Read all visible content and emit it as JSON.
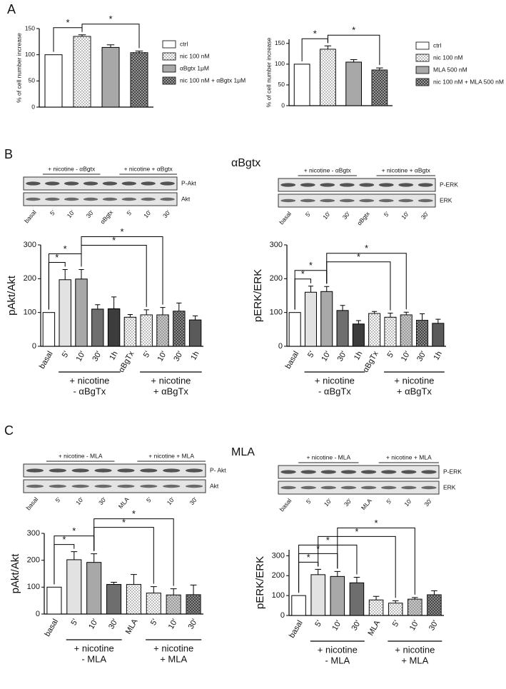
{
  "panel_labels": [
    "A",
    "B",
    "C"
  ],
  "section_titles": [
    "αBgtx",
    "MLA"
  ],
  "blots": [
    {
      "groups": [
        {
          "label": "+ nicotine - αBgtx",
          "from": 1,
          "to": 3
        },
        {
          "label": "+ nicotine + αBgtx",
          "from": 5,
          "to": 7
        }
      ],
      "rows": [
        "P-Akt",
        "Akt"
      ],
      "lanes": [
        "basal",
        "5'",
        "10'",
        "30'",
        "αBgtx",
        "5'",
        "10'",
        "30'"
      ]
    },
    {
      "groups": [
        {
          "label": "+ nicotine - αBgtx",
          "from": 1,
          "to": 3
        },
        {
          "label": "+ nicotine + αBgtx",
          "from": 5,
          "to": 7
        }
      ],
      "rows": [
        "P-ERK",
        "ERK"
      ],
      "lanes": [
        "basal",
        "5'",
        "10'",
        "30'",
        "αBgtx",
        "5'",
        "10'",
        "30'"
      ]
    },
    {
      "groups": [
        {
          "label": "+ nicotine - MLA",
          "from": 1,
          "to": 3
        },
        {
          "label": "+ nicotine + MLA",
          "from": 5,
          "to": 7
        }
      ],
      "rows": [
        "P- Akt",
        "Akt"
      ],
      "lanes": [
        "basal",
        "5'",
        "10'",
        "30'",
        "MLA",
        "5'",
        "10'",
        "30'"
      ]
    },
    {
      "groups": [
        {
          "label": "+ nicotine - MLA",
          "from": 1,
          "to": 3
        },
        {
          "label": "+ nicotine + MLA",
          "from": 5,
          "to": 7
        }
      ],
      "rows": [
        "P-ERK",
        "ERK"
      ],
      "lanes": [
        "basal",
        "5'",
        "10'",
        "30'",
        "MLA",
        "5'",
        "10'",
        "30'"
      ]
    }
  ],
  "chart_data": [
    {
      "type": "bar",
      "ylabel": "% of cell number increase",
      "legend": true,
      "categories": [
        "ctrl",
        "nic 100 nM",
        "αBgtx 1μM",
        "nic 100 nM + αBgtx 1μM"
      ],
      "values": [
        100,
        135,
        114,
        104
      ],
      "errors": [
        0,
        3,
        5,
        3
      ],
      "colors": [
        "#ffffff",
        "#ffffff",
        "#a8a8a8",
        "#9a9a9a"
      ],
      "patterns": [
        null,
        "dots",
        null,
        "checks"
      ],
      "ylim": [
        0,
        150
      ],
      "yticks": [
        0,
        50,
        100,
        150
      ],
      "significance": [
        {
          "from": 0,
          "to": 1,
          "label": "*"
        },
        {
          "from": 1,
          "to": 3,
          "label": "*"
        }
      ]
    },
    {
      "type": "bar",
      "ylabel": "% of cell number increase",
      "legend": true,
      "categories": [
        "ctrl",
        "nic 100 nM",
        "MLA 500 nM",
        "nic 100 nM + MLA 500 nM"
      ],
      "values": [
        100,
        136,
        105,
        86
      ],
      "errors": [
        0,
        8,
        6,
        5
      ],
      "colors": [
        "#ffffff",
        "#ffffff",
        "#a8a8a8",
        "#9a9a9a"
      ],
      "patterns": [
        null,
        "dots",
        null,
        "checks"
      ],
      "ylim": [
        0,
        160
      ],
      "yticks": [
        0,
        50,
        100,
        150
      ],
      "significance": [
        {
          "from": 0,
          "to": 1,
          "label": "*"
        },
        {
          "from": 1,
          "to": 3,
          "label": "*"
        }
      ]
    },
    {
      "type": "bar",
      "ylabel": "pAkt/Akt",
      "categories": [
        "basal",
        "5'",
        "10'",
        "30'",
        "1h",
        "αBgTx",
        "5'",
        "10'",
        "30'",
        "1h"
      ],
      "values": [
        100,
        197,
        199,
        110,
        111,
        86,
        93,
        93,
        104,
        78
      ],
      "errors": [
        0,
        30,
        28,
        13,
        35,
        8,
        15,
        22,
        24,
        12
      ],
      "colors": [
        "#ffffff",
        "#e2e2e2",
        "#a8a8a8",
        "#6e6e6e",
        "#3c3c3c",
        "#ffffff",
        "#ffffff",
        "#c8c8c8",
        "#8a8a8a",
        "#5a5a5a"
      ],
      "patterns": [
        null,
        null,
        null,
        null,
        null,
        "dots",
        "dots",
        "dots",
        "checks",
        null
      ],
      "ylim": [
        0,
        300
      ],
      "yticks": [
        0,
        100,
        200,
        300
      ],
      "groups": [
        {
          "label": [
            "+ nicotine",
            "- αBgTx"
          ],
          "from": 1,
          "to": 4
        },
        {
          "label": [
            "+ nicotine",
            "+ αBgTx"
          ],
          "from": 6,
          "to": 9
        }
      ],
      "significance": [
        {
          "from": 0,
          "to": 1,
          "label": "*"
        },
        {
          "from": 0,
          "to": 2,
          "label": "*"
        },
        {
          "from": 2,
          "to": 6,
          "label": "*"
        },
        {
          "from": 2,
          "to": 7,
          "label": "*"
        }
      ]
    },
    {
      "type": "bar",
      "ylabel": "pERK/ERK",
      "categories": [
        "basal",
        "5'",
        "10'",
        "30'",
        "1h",
        "αBgTx",
        "5'",
        "10'",
        "30'",
        "1h"
      ],
      "values": [
        100,
        160,
        162,
        106,
        66,
        97,
        86,
        93,
        77,
        68
      ],
      "errors": [
        0,
        18,
        15,
        15,
        10,
        6,
        12,
        8,
        19,
        12
      ],
      "colors": [
        "#ffffff",
        "#e2e2e2",
        "#a8a8a8",
        "#6e6e6e",
        "#3c3c3c",
        "#ffffff",
        "#ffffff",
        "#c8c8c8",
        "#8a8a8a",
        "#5a5a5a"
      ],
      "patterns": [
        null,
        null,
        null,
        null,
        null,
        "dots",
        "dots",
        "dots",
        "checks",
        null
      ],
      "ylim": [
        0,
        300
      ],
      "yticks": [
        0,
        100,
        200,
        300
      ],
      "groups": [
        {
          "label": [
            "+ nicotine",
            "- αBgTx"
          ],
          "from": 1,
          "to": 4
        },
        {
          "label": [
            "+ nicotine",
            "+ αBgTx"
          ],
          "from": 6,
          "to": 9
        }
      ],
      "significance": [
        {
          "from": 0,
          "to": 1,
          "label": "*"
        },
        {
          "from": 0,
          "to": 2,
          "label": "*"
        },
        {
          "from": 2,
          "to": 6,
          "label": "*"
        },
        {
          "from": 2,
          "to": 7,
          "label": "*"
        }
      ]
    },
    {
      "type": "bar",
      "ylabel": "pAkt/Akt",
      "categories": [
        "basal",
        "5'",
        "10'",
        "30'",
        "MLA",
        "5'",
        "10'",
        "30'"
      ],
      "values": [
        100,
        202,
        192,
        110,
        110,
        78,
        71,
        72
      ],
      "errors": [
        0,
        30,
        32,
        8,
        37,
        24,
        23,
        36
      ],
      "colors": [
        "#ffffff",
        "#e2e2e2",
        "#a8a8a8",
        "#6e6e6e",
        "#ffffff",
        "#ffffff",
        "#c8c8c8",
        "#8a8a8a"
      ],
      "patterns": [
        null,
        null,
        null,
        null,
        "dots",
        "dots",
        "dots",
        "checks"
      ],
      "ylim": [
        0,
        300
      ],
      "yticks": [
        0,
        100,
        200,
        300
      ],
      "groups": [
        {
          "label": [
            "+ nicotine",
            "- MLA"
          ],
          "from": 1,
          "to": 3
        },
        {
          "label": [
            "+ nicotine",
            "+ MLA"
          ],
          "from": 5,
          "to": 7
        }
      ],
      "significance": [
        {
          "from": 0,
          "to": 1,
          "label": "*"
        },
        {
          "from": 0,
          "to": 2,
          "label": "*"
        },
        {
          "from": 2,
          "to": 5,
          "label": "*"
        },
        {
          "from": 2,
          "to": 6,
          "label": "*"
        }
      ]
    },
    {
      "type": "bar",
      "ylabel": "pERK/ERK",
      "categories": [
        "basal",
        "5'",
        "10'",
        "30'",
        "MLA",
        "5'",
        "10'",
        "30'"
      ],
      "values": [
        100,
        205,
        196,
        164,
        78,
        62,
        82,
        104
      ],
      "errors": [
        0,
        27,
        25,
        28,
        18,
        12,
        8,
        20
      ],
      "colors": [
        "#ffffff",
        "#e2e2e2",
        "#a8a8a8",
        "#6e6e6e",
        "#ffffff",
        "#ffffff",
        "#c8c8c8",
        "#8a8a8a"
      ],
      "patterns": [
        null,
        null,
        null,
        null,
        "dots",
        "dots",
        "dots",
        "checks"
      ],
      "ylim": [
        0,
        330
      ],
      "yticks": [
        0,
        100,
        200,
        300
      ],
      "groups": [
        {
          "label": [
            "+ nicotine",
            "- MLA"
          ],
          "from": 1,
          "to": 3
        },
        {
          "label": [
            "+ nicotine",
            "+ MLA"
          ],
          "from": 5,
          "to": 7
        }
      ],
      "significance": [
        {
          "from": 0,
          "to": 1,
          "label": "*"
        },
        {
          "from": 0,
          "to": 2,
          "label": "*"
        },
        {
          "from": 0,
          "to": 3,
          "label": "*"
        },
        {
          "from": 1,
          "to": 5,
          "label": "*"
        },
        {
          "from": 2,
          "to": 6,
          "label": "*"
        }
      ]
    }
  ]
}
